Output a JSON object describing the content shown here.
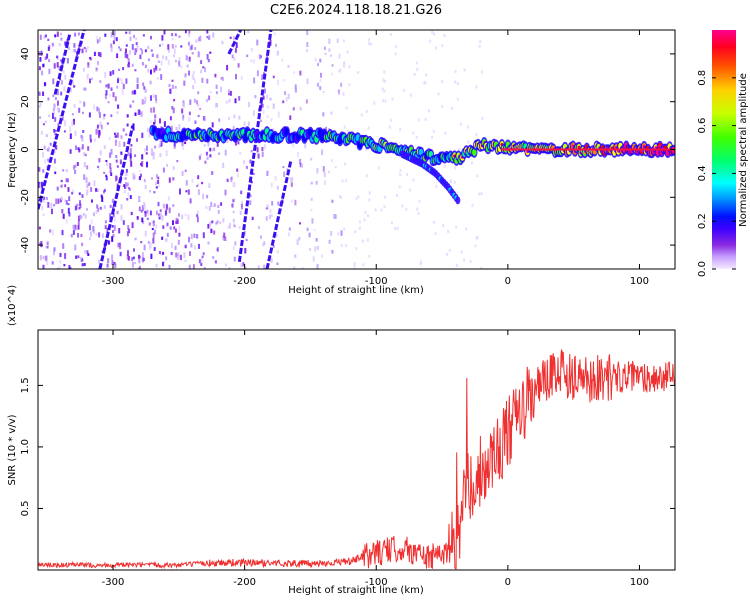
{
  "title": "C2E6.2024.118.18.21.G26",
  "colors": {
    "snr_line": "#f03030",
    "track_colormap": [
      "#e8d8ff",
      "#c7a0ff",
      "#8a2be2",
      "#5a00ff",
      "#0000ff",
      "#00c8ff",
      "#00ff80",
      "#3cff00",
      "#c8ff00",
      "#ffff00",
      "#ff8000",
      "#ff0000",
      "#ff0080"
    ]
  },
  "chart_data": [
    {
      "type": "heatmap",
      "name": "spectrogram",
      "xlabel": "Height of straight line (km)",
      "ylabel": "Frequency (Hz)",
      "xlim": [
        -357,
        127
      ],
      "ylim": [
        -50,
        50
      ],
      "xticks": [
        -300,
        -200,
        -100,
        0,
        100
      ],
      "xtick_labels": [
        "-300",
        "-200",
        "-100",
        "0",
        "100"
      ],
      "yticks": [
        -40,
        -20,
        0,
        20,
        40
      ],
      "ytick_labels": [
        "-40",
        "-20",
        "0",
        "20",
        "40"
      ],
      "colorbar": {
        "label": "Normalized spectral amplitude",
        "range": [
          0,
          1
        ],
        "ticks": [
          0.0,
          0.2,
          0.4,
          0.6,
          0.8
        ],
        "tick_labels": [
          "0.0",
          "0.2",
          "0.4",
          "0.6",
          "0.8"
        ]
      },
      "main_track": [
        {
          "x": -270,
          "y": 7,
          "amp": 0.35
        },
        {
          "x": -250,
          "y": 6,
          "amp": 0.4
        },
        {
          "x": -230,
          "y": 6,
          "amp": 0.5
        },
        {
          "x": -210,
          "y": 6,
          "amp": 0.45
        },
        {
          "x": -190,
          "y": 6,
          "amp": 0.4
        },
        {
          "x": -170,
          "y": 6,
          "amp": 0.35
        },
        {
          "x": -150,
          "y": 6,
          "amp": 0.4
        },
        {
          "x": -130,
          "y": 5,
          "amp": 0.45
        },
        {
          "x": -110,
          "y": 3,
          "amp": 0.5
        },
        {
          "x": -90,
          "y": 1,
          "amp": 0.55
        },
        {
          "x": -70,
          "y": -2,
          "amp": 0.5
        },
        {
          "x": -50,
          "y": -4,
          "amp": 0.45
        },
        {
          "x": -35,
          "y": -3,
          "amp": 0.6
        },
        {
          "x": -20,
          "y": 2,
          "amp": 0.65
        },
        {
          "x": 0,
          "y": 1,
          "amp": 0.6
        },
        {
          "x": 20,
          "y": 0,
          "amp": 0.65
        },
        {
          "x": 40,
          "y": 0,
          "amp": 0.7
        },
        {
          "x": 60,
          "y": 0,
          "amp": 0.75
        },
        {
          "x": 80,
          "y": 0,
          "amp": 0.85
        },
        {
          "x": 100,
          "y": 0,
          "amp": 0.9
        },
        {
          "x": 127,
          "y": 0,
          "amp": 0.9
        }
      ],
      "branch_track": [
        {
          "x": -80,
          "y": -2
        },
        {
          "x": -65,
          "y": -6
        },
        {
          "x": -55,
          "y": -10
        },
        {
          "x": -45,
          "y": -16
        },
        {
          "x": -37,
          "y": -22
        }
      ],
      "diagonal_streaks": [
        {
          "from": [
            -357,
            -25
          ],
          "to": [
            -322,
            50
          ]
        },
        {
          "from": [
            -344,
            23
          ],
          "to": [
            -333,
            48
          ]
        },
        {
          "from": [
            -204,
            -47
          ],
          "to": [
            -180,
            50
          ]
        },
        {
          "from": [
            -183,
            -50
          ],
          "to": [
            -165,
            -5
          ]
        },
        {
          "from": [
            -212,
            40
          ],
          "to": [
            -203,
            50
          ]
        },
        {
          "from": [
            -310,
            -50
          ],
          "to": [
            -285,
            10
          ]
        }
      ]
    },
    {
      "type": "line",
      "name": "snr",
      "xlabel": "Height of straight line (km)",
      "ylabel": "SNR (10 * v/v)",
      "yscale_label": "(x10^4)",
      "xlim": [
        -357,
        127
      ],
      "ylim": [
        0,
        1.95
      ],
      "xticks": [
        -300,
        -200,
        -100,
        0,
        100
      ],
      "xtick_labels": [
        "-300",
        "-200",
        "-100",
        "0",
        "100"
      ],
      "yticks": [
        0.5,
        1.0,
        1.5
      ],
      "ytick_labels": [
        "0.5",
        "1.0",
        "1.5"
      ],
      "x": [
        -357,
        -300,
        -250,
        -220,
        -200,
        -150,
        -120,
        -100,
        -80,
        -60,
        -50,
        -40,
        -35,
        -30,
        -25,
        -20,
        -10,
        0,
        10,
        20,
        30,
        40,
        50,
        60,
        80,
        100,
        127
      ],
      "y": [
        0.04,
        0.04,
        0.04,
        0.06,
        0.06,
        0.05,
        0.07,
        0.14,
        0.18,
        0.1,
        0.12,
        0.25,
        0.45,
        0.7,
        0.72,
        0.82,
        0.95,
        1.1,
        1.28,
        1.45,
        1.55,
        1.6,
        1.58,
        1.56,
        1.57,
        1.57,
        1.56
      ]
    }
  ]
}
